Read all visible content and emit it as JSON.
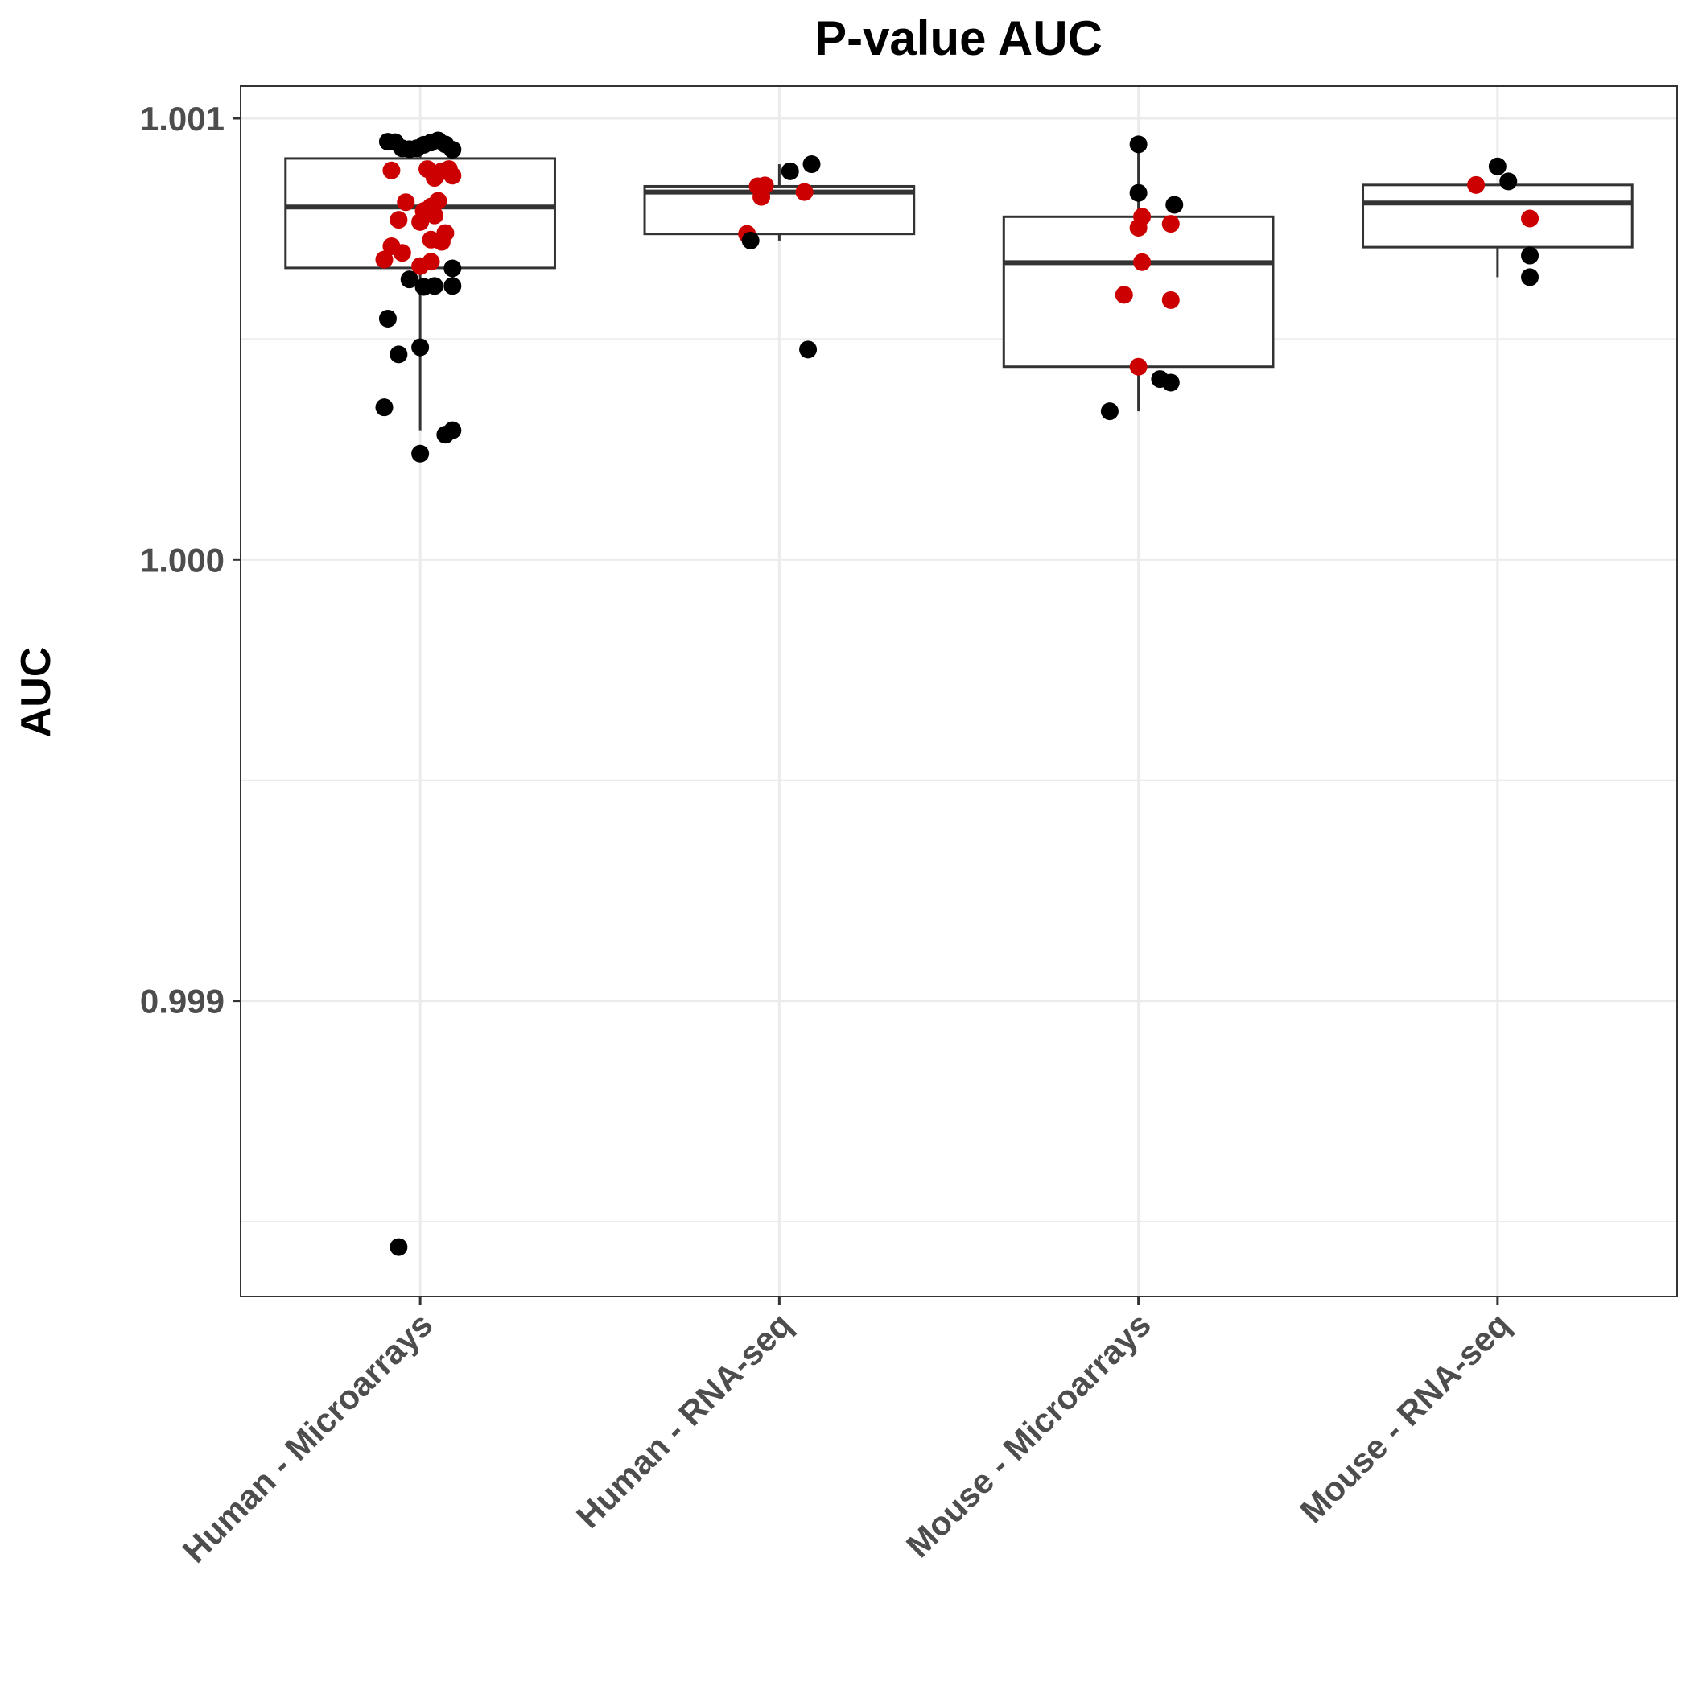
{
  "chart_data": {
    "type": "box",
    "title": "P-value AUC",
    "xlabel": "",
    "ylabel": "AUC",
    "ylim": [
      0.99833,
      1.001073
    ],
    "y_ticks": [
      "0.999",
      "1.000",
      "1.001"
    ],
    "grid": true,
    "categories": [
      "Human - Microarrays",
      "Human - RNA-seq",
      "Mouse - Microarrays",
      "Mouse - RNA-seq"
    ],
    "point_colors": {
      "black": "#000000",
      "red": "#cc0000"
    },
    "boxes": [
      {
        "category": "Human - Microarrays",
        "q1": 1.000661,
        "median": 1.000799,
        "q3": 1.000909,
        "whisker_low": 1.000293,
        "whisker_high": 1.000936
      },
      {
        "category": "Human - RNA-seq",
        "q1": 1.000738,
        "median": 1.000833,
        "q3": 1.000846,
        "whisker_low": 1.000723,
        "whisker_high": 1.000896
      },
      {
        "category": "Mouse - Microarrays",
        "q1": 1.000437,
        "median": 1.000673,
        "q3": 1.000777,
        "whisker_low": 1.000336,
        "whisker_high": 1.000941
      },
      {
        "category": "Mouse - RNA-seq",
        "q1": 1.000708,
        "median": 1.000808,
        "q3": 1.000849,
        "whisker_low": 1.00064,
        "whisker_high": 1.000849
      }
    ],
    "points": [
      {
        "category": 0,
        "offset": -0.09,
        "y": 1.000947,
        "color": "black"
      },
      {
        "category": 0,
        "offset": -0.07,
        "y": 1.000946,
        "color": "black"
      },
      {
        "category": 0,
        "offset": -0.05,
        "y": 1.000932,
        "color": "black"
      },
      {
        "category": 0,
        "offset": -0.03,
        "y": 1.00093,
        "color": "black"
      },
      {
        "category": 0,
        "offset": -0.01,
        "y": 1.000932,
        "color": "black"
      },
      {
        "category": 0,
        "offset": 0.01,
        "y": 1.00094,
        "color": "black"
      },
      {
        "category": 0,
        "offset": 0.03,
        "y": 1.000945,
        "color": "black"
      },
      {
        "category": 0,
        "offset": 0.05,
        "y": 1.00095,
        "color": "black"
      },
      {
        "category": 0,
        "offset": 0.07,
        "y": 1.000941,
        "color": "black"
      },
      {
        "category": 0,
        "offset": 0.09,
        "y": 1.000929,
        "color": "black"
      },
      {
        "category": 0,
        "offset": -0.08,
        "y": 1.000882,
        "color": "red"
      },
      {
        "category": 0,
        "offset": 0.02,
        "y": 1.000885,
        "color": "red"
      },
      {
        "category": 0,
        "offset": 0.06,
        "y": 1.00088,
        "color": "red"
      },
      {
        "category": 0,
        "offset": 0.09,
        "y": 1.00087,
        "color": "red"
      },
      {
        "category": 0,
        "offset": 0.08,
        "y": 1.000885,
        "color": "red"
      },
      {
        "category": 0,
        "offset": 0.04,
        "y": 1.000865,
        "color": "red"
      },
      {
        "category": 0,
        "offset": -0.04,
        "y": 1.00081,
        "color": "red"
      },
      {
        "category": 0,
        "offset": 0.05,
        "y": 1.000813,
        "color": "red"
      },
      {
        "category": 0,
        "offset": 0.03,
        "y": 1.0008,
        "color": "red"
      },
      {
        "category": 0,
        "offset": 0.01,
        "y": 1.00079,
        "color": "red"
      },
      {
        "category": 0,
        "offset": 0.04,
        "y": 1.00078,
        "color": "red"
      },
      {
        "category": 0,
        "offset": -0.06,
        "y": 1.00077,
        "color": "red"
      },
      {
        "category": 0,
        "offset": 0.0,
        "y": 1.000765,
        "color": "red"
      },
      {
        "category": 0,
        "offset": 0.07,
        "y": 1.00074,
        "color": "red"
      },
      {
        "category": 0,
        "offset": 0.03,
        "y": 1.000725,
        "color": "red"
      },
      {
        "category": 0,
        "offset": 0.06,
        "y": 1.00072,
        "color": "red"
      },
      {
        "category": 0,
        "offset": -0.08,
        "y": 1.00071,
        "color": "red"
      },
      {
        "category": 0,
        "offset": -0.05,
        "y": 1.000695,
        "color": "red"
      },
      {
        "category": 0,
        "offset": -0.1,
        "y": 1.00068,
        "color": "red"
      },
      {
        "category": 0,
        "offset": 0.03,
        "y": 1.000675,
        "color": "red"
      },
      {
        "category": 0,
        "offset": 0.0,
        "y": 1.000665,
        "color": "red"
      },
      {
        "category": 0,
        "offset": 0.09,
        "y": 1.00066,
        "color": "black"
      },
      {
        "category": 0,
        "offset": -0.03,
        "y": 1.000635,
        "color": "black"
      },
      {
        "category": 0,
        "offset": 0.04,
        "y": 1.00062,
        "color": "black"
      },
      {
        "category": 0,
        "offset": 0.01,
        "y": 1.000618,
        "color": "black"
      },
      {
        "category": 0,
        "offset": 0.09,
        "y": 1.00062,
        "color": "black"
      },
      {
        "category": 0,
        "offset": -0.09,
        "y": 1.000546,
        "color": "black"
      },
      {
        "category": 0,
        "offset": 0.0,
        "y": 1.000481,
        "color": "black"
      },
      {
        "category": 0,
        "offset": -0.06,
        "y": 1.000465,
        "color": "black"
      },
      {
        "category": 0,
        "offset": -0.1,
        "y": 1.000345,
        "color": "black"
      },
      {
        "category": 0,
        "offset": 0.09,
        "y": 1.000293,
        "color": "black"
      },
      {
        "category": 0,
        "offset": 0.07,
        "y": 1.000283,
        "color": "black"
      },
      {
        "category": 0,
        "offset": 0.0,
        "y": 1.00024,
        "color": "black"
      },
      {
        "category": 0,
        "offset": -0.06,
        "y": 0.998442,
        "color": "black"
      },
      {
        "category": 1,
        "offset": 0.09,
        "y": 1.000896,
        "color": "black"
      },
      {
        "category": 1,
        "offset": 0.03,
        "y": 1.00088,
        "color": "black"
      },
      {
        "category": 1,
        "offset": -0.06,
        "y": 1.000846,
        "color": "red"
      },
      {
        "category": 1,
        "offset": -0.04,
        "y": 1.000848,
        "color": "red"
      },
      {
        "category": 1,
        "offset": 0.07,
        "y": 1.000833,
        "color": "red"
      },
      {
        "category": 1,
        "offset": -0.05,
        "y": 1.000822,
        "color": "red"
      },
      {
        "category": 1,
        "offset": -0.09,
        "y": 1.000738,
        "color": "red"
      },
      {
        "category": 1,
        "offset": -0.08,
        "y": 1.000723,
        "color": "black"
      },
      {
        "category": 1,
        "offset": 0.08,
        "y": 1.000476,
        "color": "black"
      },
      {
        "category": 2,
        "offset": 0.0,
        "y": 1.000941,
        "color": "black"
      },
      {
        "category": 2,
        "offset": 0.0,
        "y": 1.000831,
        "color": "black"
      },
      {
        "category": 2,
        "offset": 0.1,
        "y": 1.000804,
        "color": "black"
      },
      {
        "category": 2,
        "offset": 0.01,
        "y": 1.000777,
        "color": "red"
      },
      {
        "category": 2,
        "offset": 0.0,
        "y": 1.000752,
        "color": "red"
      },
      {
        "category": 2,
        "offset": 0.09,
        "y": 1.000761,
        "color": "red"
      },
      {
        "category": 2,
        "offset": 0.01,
        "y": 1.000674,
        "color": "red"
      },
      {
        "category": 2,
        "offset": -0.04,
        "y": 1.0006,
        "color": "red"
      },
      {
        "category": 2,
        "offset": 0.09,
        "y": 1.000588,
        "color": "red"
      },
      {
        "category": 2,
        "offset": 0.0,
        "y": 1.000437,
        "color": "red"
      },
      {
        "category": 2,
        "offset": 0.06,
        "y": 1.000409,
        "color": "black"
      },
      {
        "category": 2,
        "offset": 0.09,
        "y": 1.000401,
        "color": "black"
      },
      {
        "category": 2,
        "offset": -0.08,
        "y": 1.000336,
        "color": "black"
      },
      {
        "category": 3,
        "offset": 0.0,
        "y": 1.000891,
        "color": "black"
      },
      {
        "category": 3,
        "offset": 0.03,
        "y": 1.000857,
        "color": "black"
      },
      {
        "category": 3,
        "offset": -0.06,
        "y": 1.000849,
        "color": "red"
      },
      {
        "category": 3,
        "offset": 0.09,
        "y": 1.000773,
        "color": "red"
      },
      {
        "category": 3,
        "offset": 0.09,
        "y": 1.000689,
        "color": "black"
      },
      {
        "category": 3,
        "offset": 0.09,
        "y": 1.00064,
        "color": "black"
      }
    ]
  }
}
